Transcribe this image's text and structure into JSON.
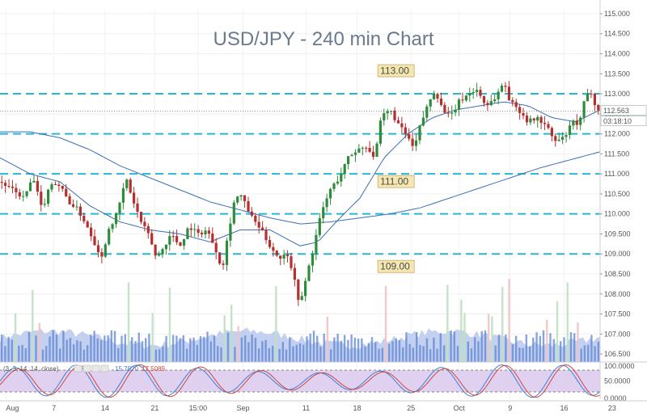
{
  "chart_data": {
    "type": "candlestick",
    "title": "USD/JPY - 240 min Chart",
    "ylim": [
      106.3,
      115.1
    ],
    "price_ticks": [
      "115.000",
      "114.500",
      "114.000",
      "113.500",
      "113.000",
      "112.500",
      "112.000",
      "111.500",
      "111.000",
      "110.500",
      "110.000",
      "109.500",
      "109.000",
      "108.500",
      "108.000",
      "107.500",
      "107.000",
      "106.500"
    ],
    "x_ticks": [
      {
        "label": "Aug",
        "at": 0.01
      },
      {
        "label": "7",
        "at": 0.09
      },
      {
        "label": "14",
        "at": 0.175
      },
      {
        "label": "21",
        "at": 0.258
      },
      {
        "label": "15:00",
        "at": 0.33
      },
      {
        "label": "Sep",
        "at": 0.405
      },
      {
        "label": "11",
        "at": 0.51
      },
      {
        "label": "18",
        "at": 0.595
      },
      {
        "label": "25",
        "at": 0.685
      },
      {
        "label": "Oct",
        "at": 0.765
      },
      {
        "label": "9",
        "at": 0.85
      },
      {
        "label": "16",
        "at": 0.94
      },
      {
        "label": "23",
        "at": 1.02
      }
    ],
    "levels": [
      113.0,
      112.0,
      111.0,
      110.0,
      109.0
    ],
    "level_labels": [
      {
        "text": "113.00",
        "price": 113.0,
        "at": 0.635
      },
      {
        "text": "111.00",
        "price": 111.0,
        "at": 0.635
      },
      {
        "text": "109.00",
        "price": 109.0,
        "at": 0.635
      }
    ],
    "last_price": {
      "value": "112.563",
      "price": 112.563
    },
    "countdown": "03:18:10",
    "close_path": [
      [
        0.0,
        110.8
      ],
      [
        0.02,
        110.6
      ],
      [
        0.04,
        110.4
      ],
      [
        0.055,
        110.9
      ],
      [
        0.07,
        110.1
      ],
      [
        0.085,
        110.8
      ],
      [
        0.1,
        110.7
      ],
      [
        0.115,
        110.3
      ],
      [
        0.13,
        110.1
      ],
      [
        0.145,
        109.7
      ],
      [
        0.16,
        109.2
      ],
      [
        0.17,
        108.9
      ],
      [
        0.18,
        109.6
      ],
      [
        0.195,
        110.0
      ],
      [
        0.21,
        110.9
      ],
      [
        0.22,
        110.4
      ],
      [
        0.235,
        109.8
      ],
      [
        0.25,
        109.4
      ],
      [
        0.26,
        108.9
      ],
      [
        0.27,
        109.1
      ],
      [
        0.285,
        109.5
      ],
      [
        0.3,
        109.2
      ],
      [
        0.315,
        109.7
      ],
      [
        0.33,
        109.5
      ],
      [
        0.345,
        109.6
      ],
      [
        0.36,
        109.1
      ],
      [
        0.37,
        108.6
      ],
      [
        0.38,
        109.5
      ],
      [
        0.39,
        110.3
      ],
      [
        0.4,
        110.5
      ],
      [
        0.41,
        110.2
      ],
      [
        0.42,
        109.9
      ],
      [
        0.435,
        109.6
      ],
      [
        0.45,
        109.2
      ],
      [
        0.465,
        108.9
      ],
      [
        0.48,
        109.0
      ],
      [
        0.49,
        108.4
      ],
      [
        0.5,
        107.7
      ],
      [
        0.51,
        108.4
      ],
      [
        0.52,
        109.0
      ],
      [
        0.535,
        110.0
      ],
      [
        0.55,
        110.6
      ],
      [
        0.565,
        110.9
      ],
      [
        0.58,
        111.4
      ],
      [
        0.595,
        111.6
      ],
      [
        0.61,
        111.7
      ],
      [
        0.625,
        111.4
      ],
      [
        0.635,
        112.4
      ],
      [
        0.65,
        112.6
      ],
      [
        0.665,
        112.2
      ],
      [
        0.68,
        111.9
      ],
      [
        0.69,
        111.6
      ],
      [
        0.7,
        112.2
      ],
      [
        0.715,
        112.8
      ],
      [
        0.725,
        113.1
      ],
      [
        0.735,
        112.7
      ],
      [
        0.75,
        112.4
      ],
      [
        0.765,
        112.8
      ],
      [
        0.78,
        113.0
      ],
      [
        0.795,
        113.1
      ],
      [
        0.81,
        112.7
      ],
      [
        0.825,
        112.9
      ],
      [
        0.84,
        113.3
      ],
      [
        0.85,
        112.8
      ],
      [
        0.865,
        112.6
      ],
      [
        0.88,
        112.3
      ],
      [
        0.895,
        112.4
      ],
      [
        0.91,
        112.2
      ],
      [
        0.925,
        111.8
      ],
      [
        0.94,
        111.9
      ],
      [
        0.955,
        112.3
      ],
      [
        0.965,
        112.2
      ],
      [
        0.975,
        112.9
      ],
      [
        0.985,
        113.05
      ],
      [
        0.995,
        112.6
      ],
      [
        1.0,
        112.56
      ]
    ],
    "ma_fast": [
      [
        0.0,
        111.4
      ],
      [
        0.05,
        111.0
      ],
      [
        0.1,
        110.8
      ],
      [
        0.15,
        110.2
      ],
      [
        0.2,
        109.8
      ],
      [
        0.25,
        109.6
      ],
      [
        0.3,
        109.5
      ],
      [
        0.35,
        109.3
      ],
      [
        0.4,
        109.6
      ],
      [
        0.45,
        109.6
      ],
      [
        0.5,
        109.2
      ],
      [
        0.53,
        109.3
      ],
      [
        0.56,
        109.8
      ],
      [
        0.6,
        110.4
      ],
      [
        0.64,
        111.4
      ],
      [
        0.68,
        112.0
      ],
      [
        0.72,
        112.4
      ],
      [
        0.76,
        112.6
      ],
      [
        0.8,
        112.7
      ],
      [
        0.84,
        112.8
      ],
      [
        0.88,
        112.7
      ],
      [
        0.92,
        112.4
      ],
      [
        0.96,
        112.3
      ],
      [
        1.0,
        112.6
      ]
    ],
    "ma_slow": [
      [
        0.0,
        112.05
      ],
      [
        0.05,
        112.05
      ],
      [
        0.1,
        111.9
      ],
      [
        0.15,
        111.6
      ],
      [
        0.2,
        111.2
      ],
      [
        0.25,
        110.9
      ],
      [
        0.3,
        110.6
      ],
      [
        0.35,
        110.3
      ],
      [
        0.4,
        110.1
      ],
      [
        0.45,
        109.9
      ],
      [
        0.5,
        109.75
      ],
      [
        0.55,
        109.8
      ],
      [
        0.6,
        109.9
      ],
      [
        0.65,
        110.0
      ],
      [
        0.7,
        110.15
      ],
      [
        0.75,
        110.4
      ],
      [
        0.8,
        110.65
      ],
      [
        0.85,
        110.9
      ],
      [
        0.9,
        111.15
      ],
      [
        0.95,
        111.35
      ],
      [
        1.0,
        111.55
      ]
    ],
    "volume_panel": {
      "price_range": [
        106.3,
        107.7
      ]
    },
    "oscillator": {
      "label": "(3, 3, 14, 14, close)",
      "value_a": "15.7870",
      "value_b": "17.5089",
      "ylim": [
        0,
        100
      ],
      "ticks": [
        "100.0000",
        "50.0000",
        "0.0000"
      ],
      "bands": [
        20,
        80
      ]
    },
    "colors": {
      "up": "#2e8b3c",
      "down": "#b3302f",
      "level_line": "#29b6d6",
      "ma": "#3b6fb6",
      "volume": "#5f86d6",
      "volume_bg": "#b8c8ec",
      "osc_band": "#d9c6ee",
      "osc_a": "#3f7fd6",
      "osc_b": "#d0473a",
      "label_fill": "#f5e7b0",
      "label_border": "#c9a86a"
    }
  }
}
